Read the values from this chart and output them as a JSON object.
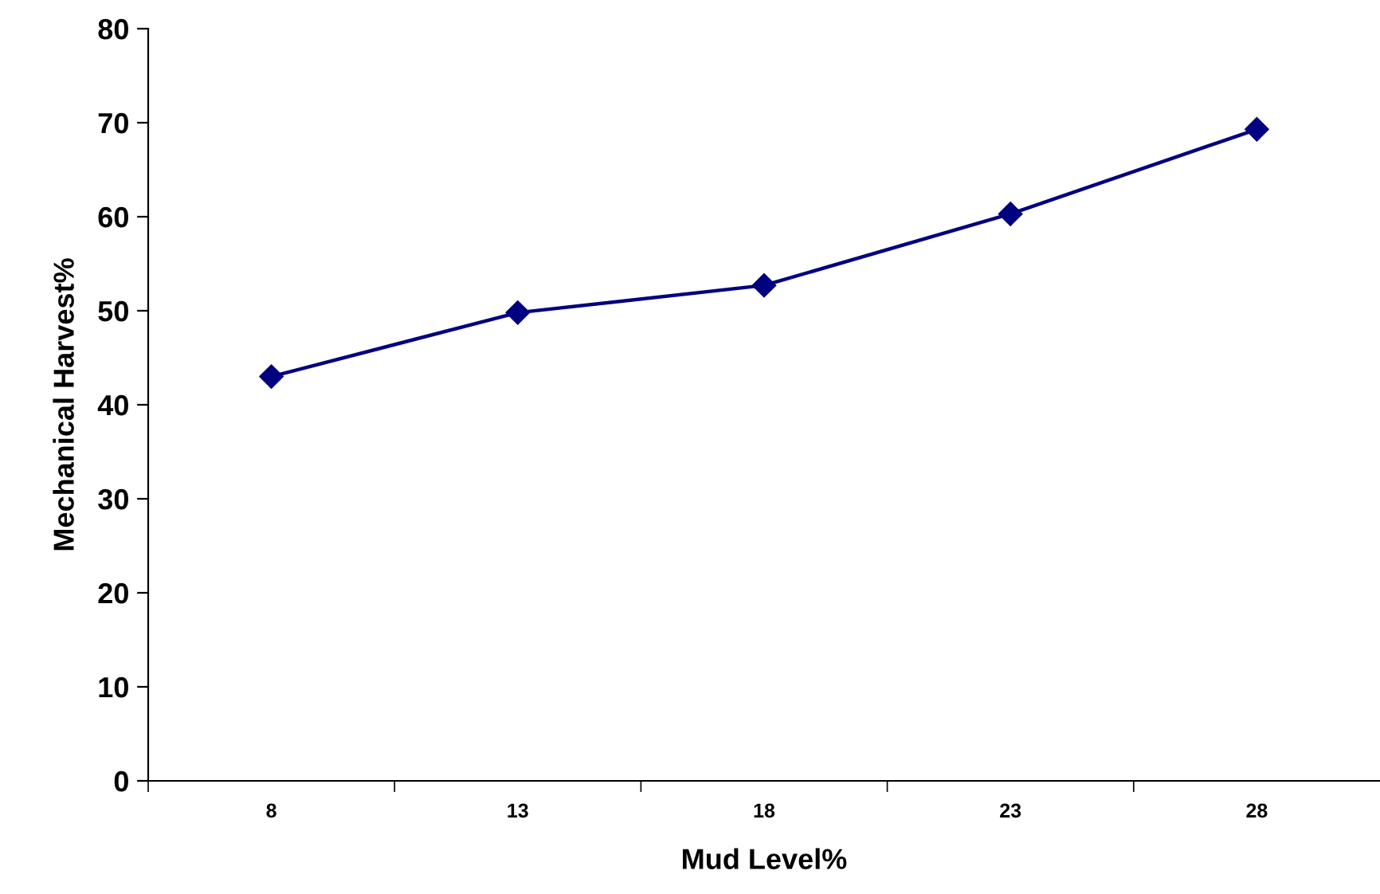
{
  "chart_data": {
    "type": "line",
    "xlabel": "Mud Level%",
    "ylabel": "Mechanical Harvest%",
    "categories": [
      "8",
      "13",
      "18",
      "23",
      "28"
    ],
    "series": [
      {
        "color": "#000080",
        "values": [
          43.0,
          49.8,
          52.7,
          60.3,
          69.3
        ]
      }
    ],
    "ylim": [
      0,
      80
    ],
    "yticks": [
      0,
      10,
      20,
      30,
      40,
      50,
      60,
      70,
      80
    ],
    "marker": "diamond",
    "line_style": "solid",
    "grid": false,
    "legend": false
  }
}
